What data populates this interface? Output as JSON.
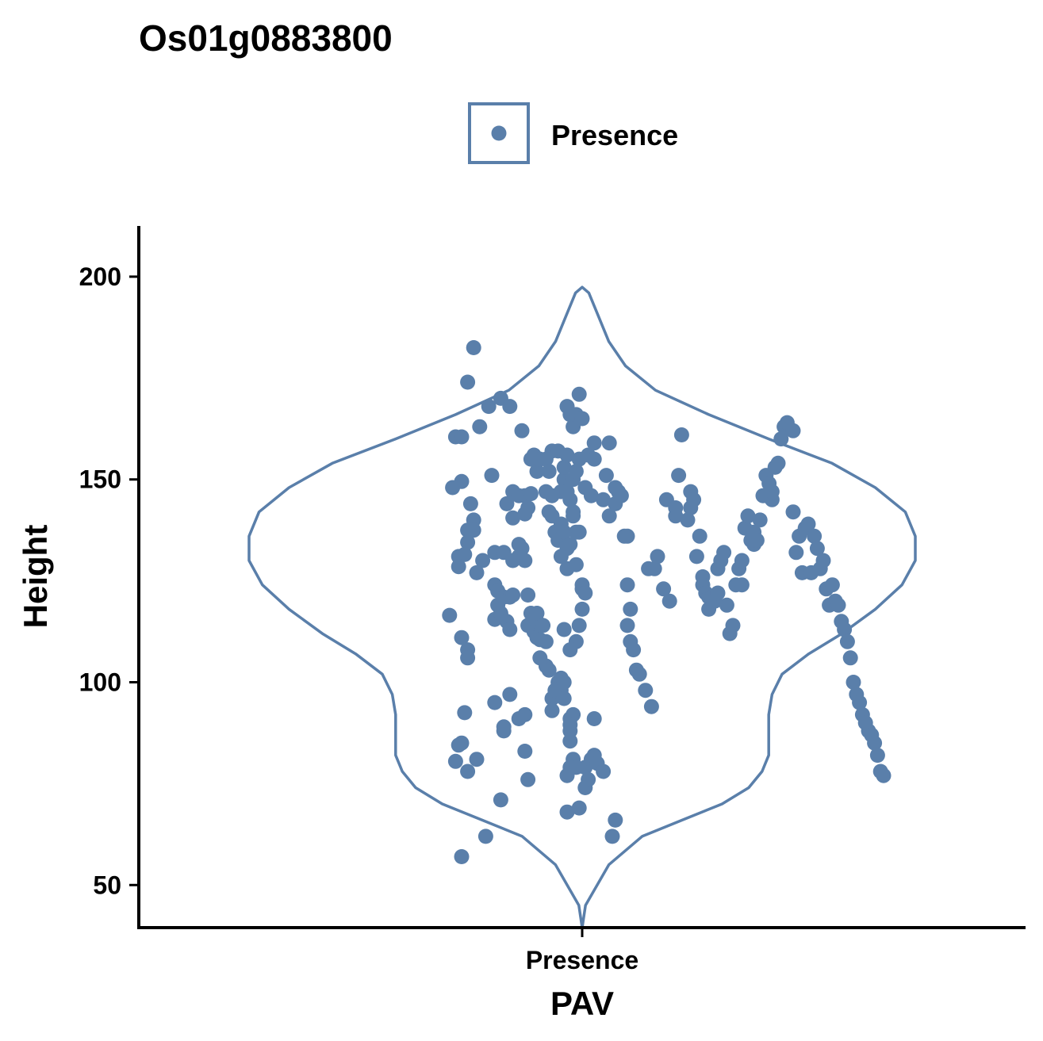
{
  "chart_data": {
    "type": "violin",
    "title": "Os01g0883800",
    "xlabel": "PAV",
    "ylabel": "Height",
    "categories": [
      "Presence"
    ],
    "ylim": [
      39.5,
      212.5
    ],
    "yticks": [
      50,
      100,
      150,
      200
    ],
    "legend": {
      "position": "top",
      "entries": [
        "Presence"
      ]
    },
    "grid": false,
    "colors": {
      "series": "#5A7FAA",
      "axis": "#000000"
    },
    "violin_profile": [
      [
        39.5,
        0.0
      ],
      [
        45,
        0.01
      ],
      [
        55,
        0.08
      ],
      [
        62,
        0.18
      ],
      [
        66,
        0.3
      ],
      [
        70,
        0.42
      ],
      [
        74,
        0.5
      ],
      [
        78,
        0.54
      ],
      [
        82,
        0.56
      ],
      [
        87,
        0.56
      ],
      [
        92,
        0.56
      ],
      [
        97,
        0.57
      ],
      [
        102,
        0.6
      ],
      [
        107,
        0.68
      ],
      [
        112,
        0.78
      ],
      [
        118,
        0.88
      ],
      [
        124,
        0.96
      ],
      [
        130,
        1.0
      ],
      [
        136,
        1.0
      ],
      [
        142,
        0.97
      ],
      [
        148,
        0.88
      ],
      [
        154,
        0.75
      ],
      [
        160,
        0.56
      ],
      [
        166,
        0.38
      ],
      [
        172,
        0.22
      ],
      [
        178,
        0.13
      ],
      [
        184,
        0.08
      ],
      [
        190,
        0.05
      ],
      [
        196,
        0.02
      ],
      [
        197.4,
        0.0
      ]
    ],
    "series": [
      {
        "name": "Presence",
        "points": [
          [
            -0.4,
            57
          ],
          [
            -0.42,
            80.5
          ],
          [
            -0.38,
            78
          ],
          [
            -0.35,
            81
          ],
          [
            -0.44,
            116.5
          ],
          [
            -0.4,
            111
          ],
          [
            -0.38,
            108
          ],
          [
            -0.38,
            106
          ],
          [
            -0.39,
            92.5
          ],
          [
            -0.4,
            85
          ],
          [
            -0.41,
            84.5
          ],
          [
            -0.32,
            62
          ],
          [
            -0.27,
            71
          ],
          [
            -0.26,
            88
          ],
          [
            -0.26,
            89
          ],
          [
            -0.29,
            95
          ],
          [
            -0.24,
            97
          ],
          [
            -0.21,
            91
          ],
          [
            -0.19,
            92
          ],
          [
            -0.19,
            83
          ],
          [
            -0.18,
            76
          ],
          [
            -0.42,
            160.5
          ],
          [
            -0.4,
            160.5
          ],
          [
            -0.38,
            174
          ],
          [
            -0.36,
            182.5
          ],
          [
            -0.34,
            163
          ],
          [
            -0.4,
            149.5
          ],
          [
            -0.43,
            148
          ],
          [
            -0.37,
            144
          ],
          [
            -0.36,
            140
          ],
          [
            -0.36,
            137.5
          ],
          [
            -0.38,
            137.5
          ],
          [
            -0.38,
            134.5
          ],
          [
            -0.39,
            131.5
          ],
          [
            -0.41,
            131
          ],
          [
            -0.41,
            128.5
          ],
          [
            -0.35,
            127
          ],
          [
            -0.33,
            130
          ],
          [
            -0.29,
            132
          ],
          [
            -0.29,
            124
          ],
          [
            -0.28,
            122.5
          ],
          [
            -0.28,
            119
          ],
          [
            -0.29,
            115.5
          ],
          [
            -0.27,
            117
          ],
          [
            -0.26,
            121
          ],
          [
            -0.25,
            115
          ],
          [
            -0.24,
            113
          ],
          [
            -0.24,
            121
          ],
          [
            -0.26,
            132
          ],
          [
            -0.23,
            140.5
          ],
          [
            -0.25,
            144
          ],
          [
            -0.23,
            147
          ],
          [
            -0.21,
            146
          ],
          [
            -0.19,
            141.5
          ],
          [
            -0.18,
            143
          ],
          [
            -0.19,
            146
          ],
          [
            -0.17,
            146.5
          ],
          [
            -0.19,
            130
          ],
          [
            -0.2,
            133
          ],
          [
            -0.21,
            134
          ],
          [
            -0.21,
            131
          ],
          [
            -0.23,
            121.5
          ],
          [
            -0.23,
            130
          ],
          [
            -0.18,
            121.5
          ],
          [
            -0.18,
            114
          ],
          [
            -0.17,
            117
          ],
          [
            -0.16,
            112.5
          ],
          [
            -0.15,
            111
          ],
          [
            -0.15,
            115
          ],
          [
            -0.14,
            110.5
          ],
          [
            -0.14,
            106
          ],
          [
            -0.15,
            117
          ],
          [
            -0.13,
            114
          ],
          [
            -0.12,
            104
          ],
          [
            -0.12,
            110
          ],
          [
            -0.11,
            103
          ],
          [
            -0.1,
            96
          ],
          [
            -0.1,
            93
          ],
          [
            -0.09,
            98
          ],
          [
            -0.08,
            100
          ],
          [
            -0.07,
            98
          ],
          [
            -0.07,
            101
          ],
          [
            -0.06,
            100
          ],
          [
            -0.06,
            96
          ],
          [
            -0.04,
            91
          ],
          [
            -0.04,
            88
          ],
          [
            -0.03,
            92
          ],
          [
            -0.04,
            89.5
          ],
          [
            -0.04,
            85.5
          ],
          [
            -0.03,
            81
          ],
          [
            -0.04,
            79
          ],
          [
            -0.05,
            77
          ],
          [
            -0.05,
            68
          ],
          [
            -0.01,
            69
          ],
          [
            -0.02,
            79
          ],
          [
            0.01,
            74
          ],
          [
            0.01,
            79
          ],
          [
            0.02,
            76
          ],
          [
            0.03,
            81
          ],
          [
            0.04,
            82
          ],
          [
            0.05,
            80
          ],
          [
            0.04,
            91
          ],
          [
            0.07,
            78
          ],
          [
            0.1,
            62
          ],
          [
            0.11,
            66
          ],
          [
            -0.3,
            151
          ],
          [
            -0.31,
            168
          ],
          [
            -0.27,
            170
          ],
          [
            -0.24,
            168
          ],
          [
            -0.2,
            162
          ],
          [
            -0.17,
            155
          ],
          [
            -0.16,
            156
          ],
          [
            -0.15,
            152
          ],
          [
            -0.14,
            155
          ],
          [
            -0.12,
            155
          ],
          [
            -0.11,
            152
          ],
          [
            -0.1,
            157
          ],
          [
            -0.08,
            157
          ],
          [
            -0.06,
            150
          ],
          [
            -0.06,
            153
          ],
          [
            -0.07,
            147
          ],
          [
            -0.05,
            156
          ],
          [
            -0.05,
            168
          ],
          [
            -0.04,
            166
          ],
          [
            -0.03,
            163
          ],
          [
            -0.02,
            166
          ],
          [
            -0.01,
            171
          ],
          [
            0.0,
            165
          ],
          [
            -0.11,
            142
          ],
          [
            -0.12,
            147
          ],
          [
            -0.1,
            146
          ],
          [
            -0.1,
            141
          ],
          [
            -0.09,
            137
          ],
          [
            -0.08,
            135
          ],
          [
            -0.07,
            131
          ],
          [
            -0.07,
            139
          ],
          [
            -0.06,
            137
          ],
          [
            -0.05,
            128
          ],
          [
            -0.05,
            133
          ],
          [
            -0.04,
            134
          ],
          [
            -0.03,
            141
          ],
          [
            -0.02,
            137
          ],
          [
            -0.01,
            137
          ],
          [
            -0.02,
            129
          ],
          [
            0.0,
            124
          ],
          [
            0.0,
            123
          ],
          [
            0.01,
            122
          ],
          [
            0.0,
            118
          ],
          [
            -0.01,
            114
          ],
          [
            -0.02,
            110
          ],
          [
            -0.04,
            108
          ],
          [
            -0.06,
            113
          ],
          [
            -0.03,
            142
          ],
          [
            -0.04,
            145
          ],
          [
            -0.05,
            147
          ],
          [
            -0.03,
            150
          ],
          [
            -0.02,
            152
          ],
          [
            -0.01,
            155
          ],
          [
            0.01,
            148
          ],
          [
            0.03,
            146
          ],
          [
            0.02,
            156
          ],
          [
            0.04,
            155
          ],
          [
            0.04,
            159
          ],
          [
            0.07,
            145
          ],
          [
            0.08,
            151
          ],
          [
            0.09,
            141
          ],
          [
            0.09,
            159
          ],
          [
            0.11,
            148
          ],
          [
            0.11,
            144
          ],
          [
            0.12,
            147
          ],
          [
            0.13,
            146
          ],
          [
            0.14,
            136
          ],
          [
            0.15,
            136
          ],
          [
            0.15,
            124
          ],
          [
            0.15,
            114
          ],
          [
            0.16,
            118
          ],
          [
            0.16,
            110
          ],
          [
            0.17,
            108
          ],
          [
            0.18,
            103
          ],
          [
            0.19,
            102
          ],
          [
            0.21,
            98
          ],
          [
            0.23,
            94
          ],
          [
            0.22,
            128
          ],
          [
            0.24,
            128
          ],
          [
            0.25,
            131
          ],
          [
            0.27,
            123
          ],
          [
            0.29,
            120
          ],
          [
            0.28,
            145
          ],
          [
            0.31,
            141
          ],
          [
            0.31,
            143
          ],
          [
            0.32,
            151
          ],
          [
            0.33,
            161
          ],
          [
            0.35,
            140
          ],
          [
            0.36,
            143
          ],
          [
            0.36,
            147
          ],
          [
            0.37,
            145
          ],
          [
            0.38,
            131
          ],
          [
            0.39,
            136
          ],
          [
            0.4,
            126
          ],
          [
            0.4,
            124
          ],
          [
            0.41,
            122
          ],
          [
            0.42,
            121
          ],
          [
            0.42,
            118
          ],
          [
            0.43,
            121
          ],
          [
            0.44,
            120
          ],
          [
            0.45,
            122
          ],
          [
            0.45,
            128
          ],
          [
            0.46,
            130
          ],
          [
            0.47,
            132
          ],
          [
            0.48,
            119
          ],
          [
            0.49,
            112
          ],
          [
            0.5,
            114
          ],
          [
            0.51,
            124
          ],
          [
            0.52,
            128
          ],
          [
            0.53,
            124
          ],
          [
            0.53,
            130
          ],
          [
            0.54,
            138
          ],
          [
            0.55,
            141
          ],
          [
            0.56,
            135
          ],
          [
            0.57,
            134
          ],
          [
            0.57,
            137
          ],
          [
            0.58,
            135
          ],
          [
            0.59,
            140
          ],
          [
            0.6,
            146
          ],
          [
            0.61,
            146
          ],
          [
            0.61,
            151
          ],
          [
            0.62,
            149
          ],
          [
            0.63,
            145
          ],
          [
            0.63,
            147
          ],
          [
            0.64,
            153
          ],
          [
            0.65,
            154
          ],
          [
            0.66,
            160
          ],
          [
            0.67,
            163
          ],
          [
            0.68,
            164
          ],
          [
            0.7,
            162
          ],
          [
            0.7,
            142
          ],
          [
            0.71,
            132
          ],
          [
            0.72,
            136
          ],
          [
            0.73,
            127
          ],
          [
            0.74,
            138
          ],
          [
            0.75,
            139
          ],
          [
            0.76,
            127
          ],
          [
            0.77,
            136
          ],
          [
            0.78,
            133
          ],
          [
            0.79,
            128
          ],
          [
            0.8,
            130
          ],
          [
            0.81,
            123
          ],
          [
            0.82,
            119
          ],
          [
            0.83,
            124
          ],
          [
            0.84,
            120
          ],
          [
            0.85,
            119
          ],
          [
            0.86,
            115
          ],
          [
            0.87,
            113
          ],
          [
            0.88,
            110
          ],
          [
            0.89,
            106
          ],
          [
            0.9,
            100
          ],
          [
            0.91,
            97
          ],
          [
            0.92,
            95
          ],
          [
            0.93,
            92
          ],
          [
            0.94,
            90
          ],
          [
            0.95,
            88
          ],
          [
            0.96,
            87
          ],
          [
            0.97,
            85
          ],
          [
            0.98,
            82
          ],
          [
            0.99,
            78
          ],
          [
            1.0,
            77
          ]
        ]
      }
    ]
  }
}
